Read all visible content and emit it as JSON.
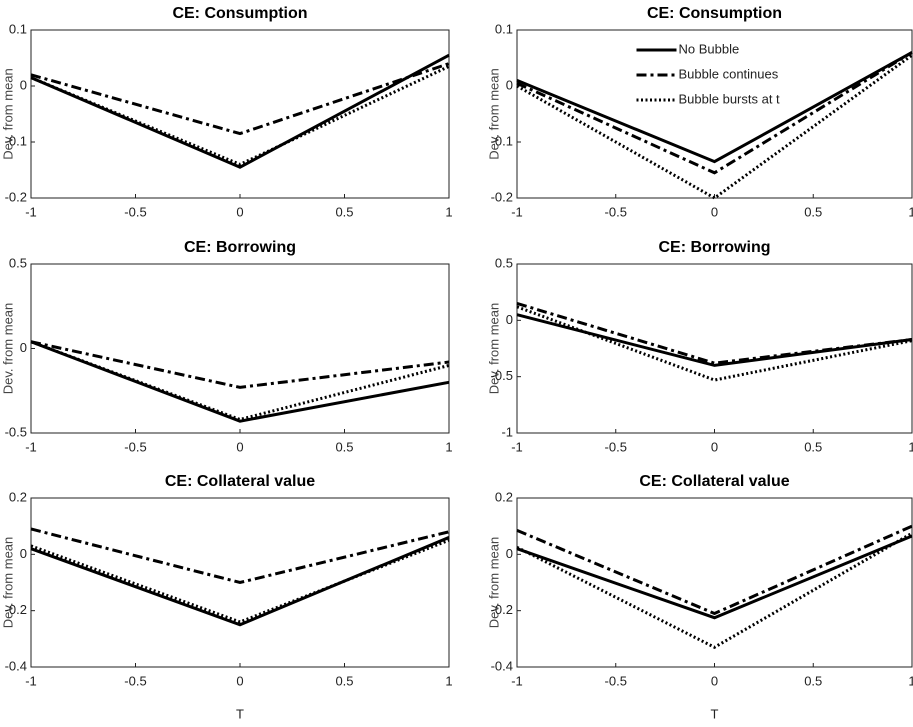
{
  "chart_data": [
    {
      "type": "line",
      "title": "CE: Consumption",
      "ylabel": "Dev. from mean",
      "x": [
        -1,
        0,
        1
      ],
      "xlim": [
        -1,
        1
      ],
      "xticks": [
        -1,
        -0.5,
        0,
        0.5,
        1
      ],
      "ylim": [
        -0.2,
        0.1
      ],
      "yticks": [
        -0.2,
        -0.1,
        0,
        0.1
      ],
      "series": [
        {
          "color": "#000000",
          "dash": "solid",
          "values": [
            0.015,
            -0.145,
            0.055
          ]
        },
        {
          "color": "#000000",
          "dash": "dashdot",
          "values": [
            0.02,
            -0.085,
            0.04
          ]
        },
        {
          "color": "#000000",
          "dash": "dotted",
          "values": [
            0.015,
            -0.14,
            0.035
          ]
        }
      ]
    },
    {
      "type": "line",
      "title": "CE: Consumption",
      "ylabel": "Dev. from mean",
      "x": [
        -1,
        0,
        1
      ],
      "xlim": [
        -1,
        1
      ],
      "xticks": [
        -1,
        -0.5,
        0,
        0.5,
        1
      ],
      "ylim": [
        -0.2,
        0.1
      ],
      "yticks": [
        -0.2,
        -0.1,
        0,
        0.1
      ],
      "legend": "upper center",
      "series": [
        {
          "name": "No Bubble",
          "color": "#000000",
          "dash": "solid",
          "values": [
            0.01,
            -0.135,
            0.06
          ]
        },
        {
          "name": "Bubble continues",
          "color": "#000000",
          "dash": "dashdot",
          "values": [
            0.005,
            -0.155,
            0.06
          ]
        },
        {
          "name": "Bubble bursts at t",
          "color": "#000000",
          "dash": "dotted",
          "values": [
            0.0,
            -0.2,
            0.055
          ]
        }
      ]
    },
    {
      "type": "line",
      "title": "CE: Borrowing",
      "ylabel": "Dev. from mean",
      "x": [
        -1,
        0,
        1
      ],
      "xlim": [
        -1,
        1
      ],
      "xticks": [
        -1,
        -0.5,
        0,
        0.5,
        1
      ],
      "ylim": [
        -0.5,
        0.5
      ],
      "yticks": [
        -0.5,
        0,
        0.5
      ],
      "series": [
        {
          "color": "#000000",
          "dash": "solid",
          "values": [
            0.04,
            -0.43,
            -0.2
          ]
        },
        {
          "color": "#000000",
          "dash": "dashdot",
          "values": [
            0.04,
            -0.23,
            -0.08
          ]
        },
        {
          "color": "#000000",
          "dash": "dotted",
          "values": [
            0.04,
            -0.42,
            -0.1
          ]
        }
      ]
    },
    {
      "type": "line",
      "title": "CE: Borrowing",
      "ylabel": "Dev. from mean",
      "x": [
        -1,
        0,
        1
      ],
      "xlim": [
        -1,
        1
      ],
      "xticks": [
        -1,
        -0.5,
        0,
        0.5,
        1
      ],
      "ylim": [
        -1,
        0.5
      ],
      "yticks": [
        -1,
        -0.5,
        0,
        0.5
      ],
      "series": [
        {
          "color": "#000000",
          "dash": "solid",
          "values": [
            0.05,
            -0.4,
            -0.17
          ]
        },
        {
          "color": "#000000",
          "dash": "dashdot",
          "values": [
            0.15,
            -0.38,
            -0.17
          ]
        },
        {
          "color": "#000000",
          "dash": "dotted",
          "values": [
            0.12,
            -0.53,
            -0.18
          ]
        }
      ]
    },
    {
      "type": "line",
      "title": "CE: Collateral value",
      "ylabel": "Dev. from mean",
      "xlabel": "T",
      "x": [
        -1,
        0,
        1
      ],
      "xlim": [
        -1,
        1
      ],
      "xticks": [
        -1,
        -0.5,
        0,
        0.5,
        1
      ],
      "ylim": [
        -0.4,
        0.2
      ],
      "yticks": [
        -0.4,
        -0.2,
        0,
        0.2
      ],
      "series": [
        {
          "color": "#000000",
          "dash": "solid",
          "values": [
            0.02,
            -0.25,
            0.06
          ]
        },
        {
          "color": "#000000",
          "dash": "dashdot",
          "values": [
            0.09,
            -0.1,
            0.08
          ]
        },
        {
          "color": "#000000",
          "dash": "dotted",
          "values": [
            0.03,
            -0.24,
            0.05
          ]
        }
      ]
    },
    {
      "type": "line",
      "title": "CE: Collateral value",
      "ylabel": "Dev. from mean",
      "xlabel": "T",
      "x": [
        -1,
        0,
        1
      ],
      "xlim": [
        -1,
        1
      ],
      "xticks": [
        -1,
        -0.5,
        0,
        0.5,
        1
      ],
      "ylim": [
        -0.4,
        0.2
      ],
      "yticks": [
        -0.4,
        -0.2,
        0,
        0.2
      ],
      "series": [
        {
          "color": "#000000",
          "dash": "solid",
          "values": [
            0.02,
            -0.225,
            0.065
          ]
        },
        {
          "color": "#000000",
          "dash": "dashdot",
          "values": [
            0.085,
            -0.21,
            0.1
          ]
        },
        {
          "color": "#000000",
          "dash": "dotted",
          "values": [
            0.025,
            -0.33,
            0.075
          ]
        }
      ]
    }
  ]
}
